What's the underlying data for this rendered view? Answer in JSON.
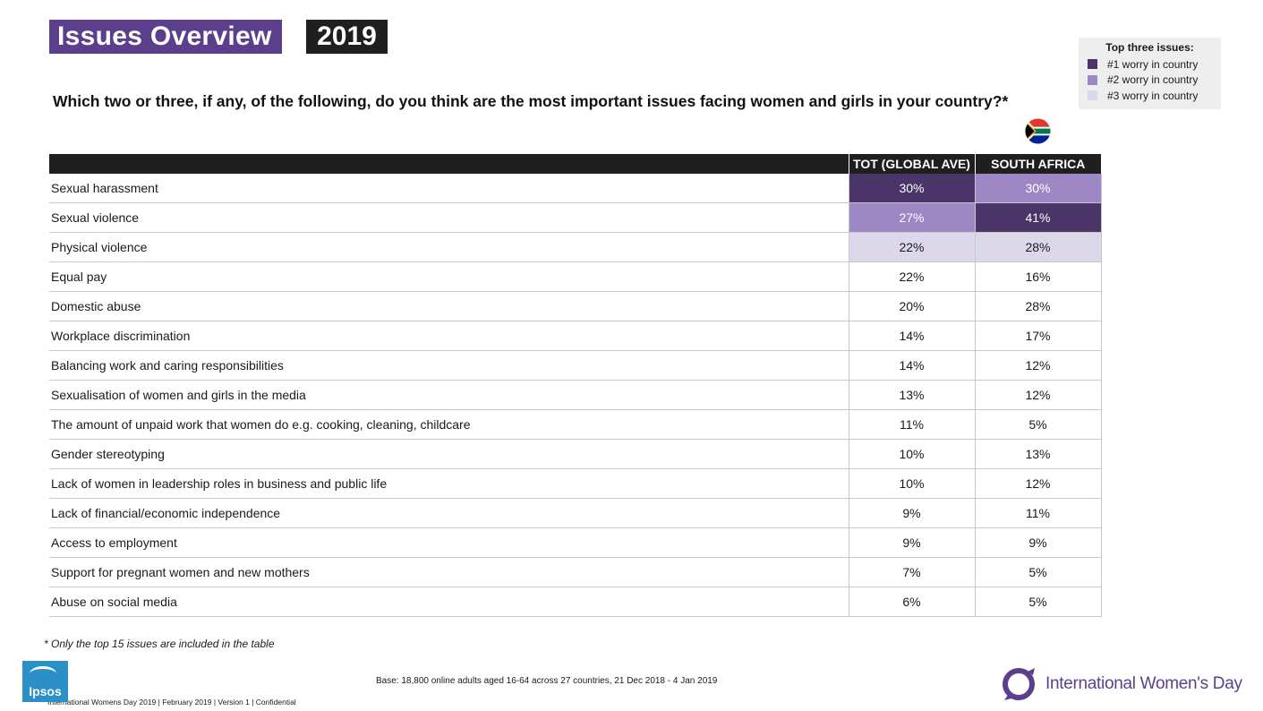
{
  "header": {
    "title": "Issues Overview",
    "year": "2019"
  },
  "question": "Which two or three, if any, of the following, do you think are the most important issues facing women and girls in your country?*",
  "legend": {
    "title": "Top three issues:",
    "items": [
      {
        "label": "#1 worry in country",
        "color": "#4a3468"
      },
      {
        "label": "#2 worry in country",
        "color": "#9d87c4"
      },
      {
        "label": "#3 worry in country",
        "color": "#ddd7ea"
      }
    ]
  },
  "flag_icon": "south-africa-flag-icon",
  "table": {
    "columns": [
      "",
      "TOT (GLOBAL AVE)",
      "SOUTH AFRICA"
    ],
    "rows": [
      {
        "label": "Sexual harassment",
        "global": "30%",
        "sa": "30%",
        "global_rank": 1,
        "sa_rank": 2
      },
      {
        "label": "Sexual violence",
        "global": "27%",
        "sa": "41%",
        "global_rank": 2,
        "sa_rank": 1
      },
      {
        "label": "Physical violence",
        "global": "22%",
        "sa": "28%",
        "global_rank": 3,
        "sa_rank": 3
      },
      {
        "label": "Equal pay",
        "global": "22%",
        "sa": "16%",
        "global_rank": 0,
        "sa_rank": 0
      },
      {
        "label": "Domestic abuse",
        "global": "20%",
        "sa": "28%",
        "global_rank": 0,
        "sa_rank": 0
      },
      {
        "label": "Workplace discrimination",
        "global": "14%",
        "sa": "17%",
        "global_rank": 0,
        "sa_rank": 0
      },
      {
        "label": "Balancing work and caring responsibilities",
        "global": "14%",
        "sa": "12%",
        "global_rank": 0,
        "sa_rank": 0
      },
      {
        "label": "Sexualisation of women and girls in the media",
        "global": "13%",
        "sa": "12%",
        "global_rank": 0,
        "sa_rank": 0
      },
      {
        "label": "The amount of unpaid work that women do e.g. cooking, cleaning, childcare",
        "global": "11%",
        "sa": "5%",
        "global_rank": 0,
        "sa_rank": 0
      },
      {
        "label": "Gender stereotyping",
        "global": "10%",
        "sa": "13%",
        "global_rank": 0,
        "sa_rank": 0
      },
      {
        "label": "Lack of women in leadership roles in business and public life",
        "global": "10%",
        "sa": "12%",
        "global_rank": 0,
        "sa_rank": 0
      },
      {
        "label": "Lack of financial/economic independence",
        "global": "9%",
        "sa": "11%",
        "global_rank": 0,
        "sa_rank": 0
      },
      {
        "label": "Access to employment",
        "global": "9%",
        "sa": "9%",
        "global_rank": 0,
        "sa_rank": 0
      },
      {
        "label": "Support for pregnant women and new mothers",
        "global": "7%",
        "sa": "5%",
        "global_rank": 0,
        "sa_rank": 0
      },
      {
        "label": "Abuse on social media",
        "global": "6%",
        "sa": "5%",
        "global_rank": 0,
        "sa_rank": 0
      }
    ]
  },
  "footnote": "* Only the top 15 issues are included in the table",
  "base_note": "Base: 18,800 online adults aged 16-64 across 27 countries,  21 Dec 2018 - 4 Jan  2019",
  "confidential_note": "International  Womens Day 2019 | February 2019 | Version  1 | Confidential",
  "logos": {
    "ipsos": "Ipsos",
    "iwd": "International Women's Day"
  }
}
